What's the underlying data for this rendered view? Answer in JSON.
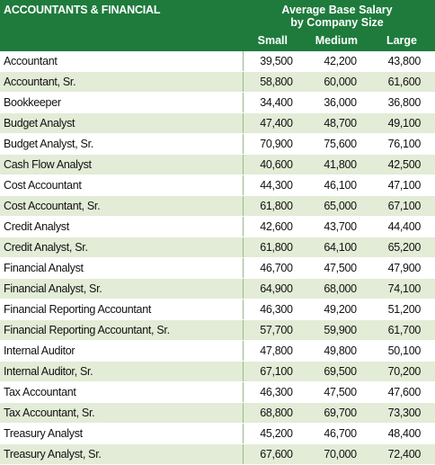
{
  "header": {
    "title": "ACCOUNTANTS & FINANCIAL",
    "group_heading": [
      "Average Base Salary",
      "by Company Size"
    ],
    "columns": [
      "Small",
      "Medium",
      "Large"
    ]
  },
  "table": {
    "rows": [
      [
        "Accountant",
        "39,500",
        "42,200",
        "43,800"
      ],
      [
        "Accountant, Sr.",
        "58,800",
        "60,000",
        "61,600"
      ],
      [
        "Bookkeeper",
        "34,400",
        "36,000",
        "36,800"
      ],
      [
        "Budget Analyst",
        "47,400",
        "48,700",
        "49,100"
      ],
      [
        "Budget Analyst, Sr.",
        "70,900",
        "75,600",
        "76,100"
      ],
      [
        "Cash Flow Analyst",
        "40,600",
        "41,800",
        "42,500"
      ],
      [
        "Cost Accountant",
        "44,300",
        "46,100",
        "47,100"
      ],
      [
        "Cost Accountant, Sr.",
        "61,800",
        "65,000",
        "67,100"
      ],
      [
        "Credit Analyst",
        "42,600",
        "43,700",
        "44,400"
      ],
      [
        "Credit Analyst, Sr.",
        "61,800",
        "64,100",
        "65,200"
      ],
      [
        "Financial Analyst",
        "46,700",
        "47,500",
        "47,900"
      ],
      [
        "Financial Analyst, Sr.",
        "64,900",
        "68,000",
        "74,100"
      ],
      [
        "Financial Reporting Accountant",
        "46,300",
        "49,200",
        "51,200"
      ],
      [
        "Financial Reporting Accountant, Sr.",
        "57,700",
        "59,900",
        "61,700"
      ],
      [
        "Internal Auditor",
        "47,800",
        "49,800",
        "50,100"
      ],
      [
        "Internal Auditor, Sr.",
        "67,100",
        "69,500",
        "70,200"
      ],
      [
        "Tax Accountant",
        "46,300",
        "47,500",
        "47,600"
      ],
      [
        "Tax Accountant, Sr.",
        "68,800",
        "69,700",
        "73,300"
      ],
      [
        "Treasury Analyst",
        "45,200",
        "46,700",
        "48,400"
      ],
      [
        "Treasury Analyst, Sr.",
        "67,600",
        "70,000",
        "72,400"
      ]
    ]
  }
}
